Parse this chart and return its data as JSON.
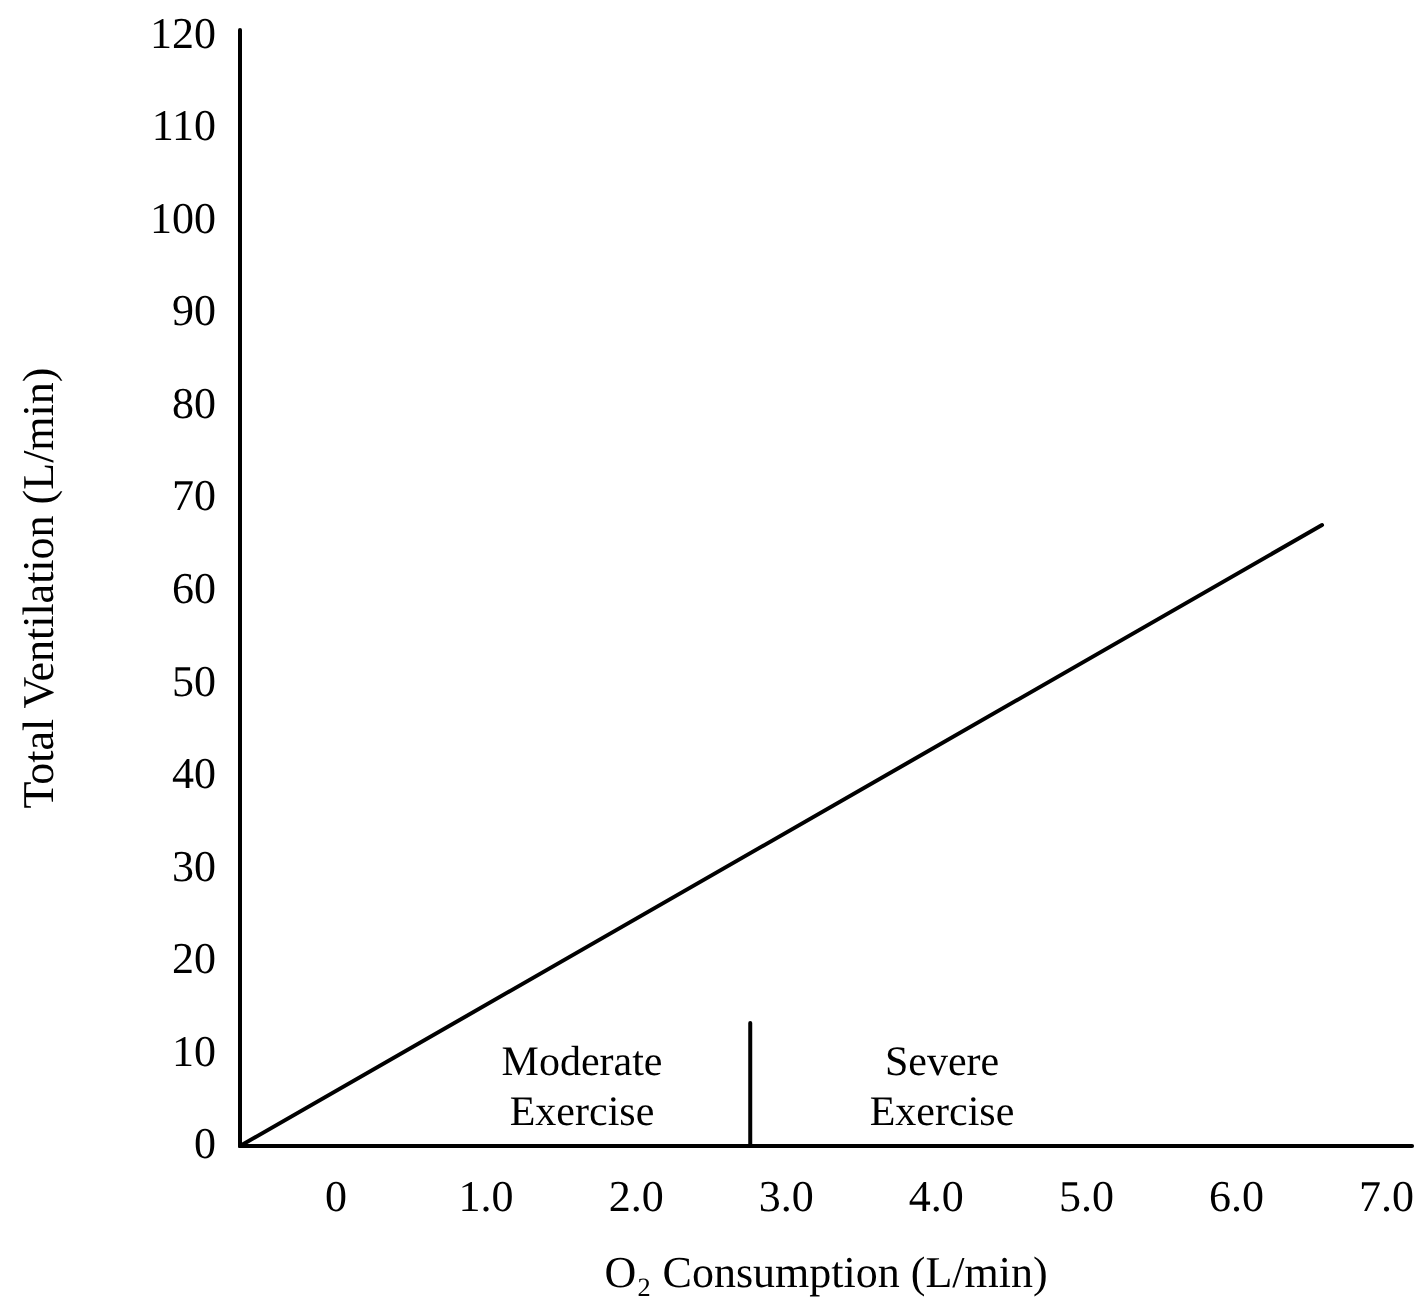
{
  "chart_data": {
    "type": "line",
    "xlabel": "O₂ Consumption (L/min)",
    "ylabel": "Total Ventilation (L/min)",
    "xlim": [
      -0.64,
      7.17
    ],
    "ylim": [
      -0.3,
      120.3
    ],
    "xticks": [
      0,
      {
        "value": 1,
        "label": "1.0"
      },
      {
        "value": 2,
        "label": "2.0"
      },
      {
        "value": 3,
        "label": "3.0"
      },
      {
        "value": 4,
        "label": "4.0"
      },
      {
        "value": 5,
        "label": "5.0"
      },
      {
        "value": 6,
        "label": "6.0"
      },
      {
        "value": 7,
        "label": "7.0"
      }
    ],
    "yticks": [
      0,
      10,
      20,
      30,
      40,
      50,
      60,
      70,
      80,
      90,
      100,
      110,
      120
    ],
    "series": [
      {
        "color": "#000000",
        "x": [
          -0.64,
          6.57
        ],
        "values": [
          -0.3,
          66.8
        ]
      },
      {
        "color": "#000000",
        "x": [
          2.76,
          2.76
        ],
        "values": [
          -0.3,
          13
        ]
      }
    ],
    "annotations": [
      "Moderate\nExercise",
      "Severe\nExercise"
    ],
    "grid": false,
    "marker": "none",
    "line_style": "solid"
  }
}
